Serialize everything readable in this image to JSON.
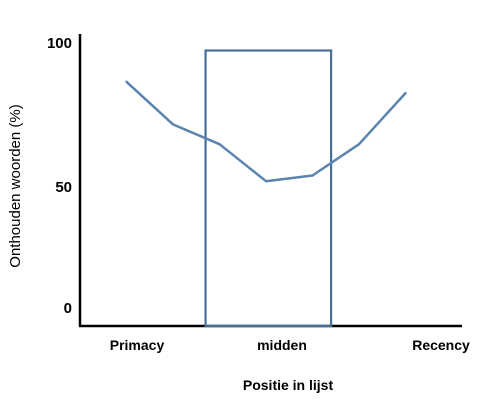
{
  "chart_data": {
    "type": "line",
    "xlabel": "Positie in lijst",
    "ylabel": "Onthouden woorden (%)",
    "y_ticks": [
      "0",
      "50",
      "100"
    ],
    "ylim": [
      0,
      100
    ],
    "categories": [
      "Primacy",
      "midden",
      "Recency"
    ],
    "series": [
      {
        "x": [
          1,
          2,
          3,
          4,
          5,
          6,
          7
        ],
        "values": [
          86,
          71,
          64,
          51,
          53,
          64,
          82
        ]
      }
    ],
    "xlim": [
      0,
      8
    ],
    "highlight_box": {
      "x_start": 2.7,
      "x_end": 5.4,
      "y_top": 97
    },
    "grid": false,
    "line_color": "#5b84ae",
    "box_color": "#466f98"
  }
}
